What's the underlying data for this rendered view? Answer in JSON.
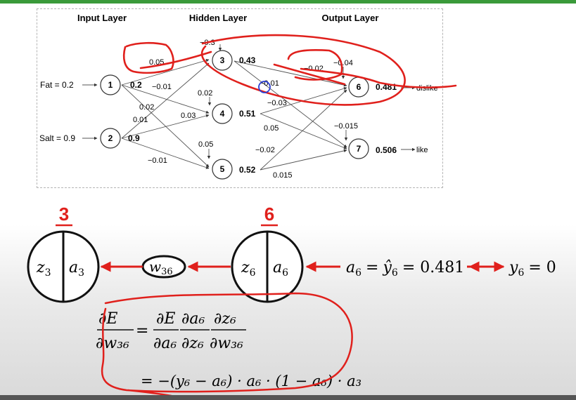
{
  "network": {
    "layer_titles": {
      "input": "Input Layer",
      "hidden": "Hidden Layer",
      "output": "Output Layer"
    },
    "inputs": {
      "fat": "Fat = 0.2",
      "salt": "Salt = 0.9"
    },
    "nodes": {
      "n1": {
        "id": "1",
        "value": "0.2"
      },
      "n2": {
        "id": "2",
        "value": "0.9"
      },
      "n3": {
        "id": "3",
        "value": "0.43"
      },
      "n4": {
        "id": "4",
        "value": "0.51"
      },
      "n5": {
        "id": "5",
        "value": "0.52"
      },
      "n6": {
        "id": "6",
        "value": "0.481",
        "out": "dislike"
      },
      "n7": {
        "id": "7",
        "value": "0.506",
        "out": "like"
      }
    },
    "biases": {
      "b3": "−0.3",
      "b4": "0.02",
      "b5": "0.05",
      "b6": "−0.04",
      "b7": "−0.015"
    },
    "weights": {
      "w13": "0.05",
      "w14": "−0.01",
      "w15": "0.02",
      "w23": "0.01",
      "w24": "0.03",
      "w25": "−0.01",
      "w36": "−0.02",
      "w37": "−0.01",
      "w46": "−0.03",
      "w47": "0.05",
      "w56": "−0.02",
      "w57": "0.015"
    }
  },
  "lower": {
    "node3_number": "3",
    "node6_number": "6",
    "node3": {
      "left": "z",
      "left_sub": "3",
      "right": "a",
      "right_sub": "3"
    },
    "node6": {
      "left": "z",
      "left_sub": "6",
      "right": "a",
      "right_sub": "6"
    },
    "weight": {
      "sym": "w",
      "sub": "36"
    },
    "output_eq": {
      "lhs_a": "a",
      "lhs_sub": "6",
      "eq": "=",
      "yhat": "ŷ",
      "yhat_sub": "6",
      "val": "= 0.481"
    },
    "target": {
      "y": "y",
      "y_sub": "6",
      "val": "= 0"
    }
  },
  "formula": {
    "lhs_num": "∂E",
    "lhs_den": "∂w₃₆",
    "eq": "=",
    "f1_num": "∂E",
    "f1_den": "∂a₆",
    "f2_num": "∂a₆",
    "f2_den": "∂z₆",
    "f3_num": "∂z₆",
    "f3_den": "∂w₃₆",
    "line2": "= −(y₆ − a₆) · a₆ · (1 − a₆) · a₃"
  },
  "colors": {
    "accent_red": "#e0201c",
    "circle_blue": "#2b3fd4",
    "top_bar": "#3a9a3a"
  }
}
